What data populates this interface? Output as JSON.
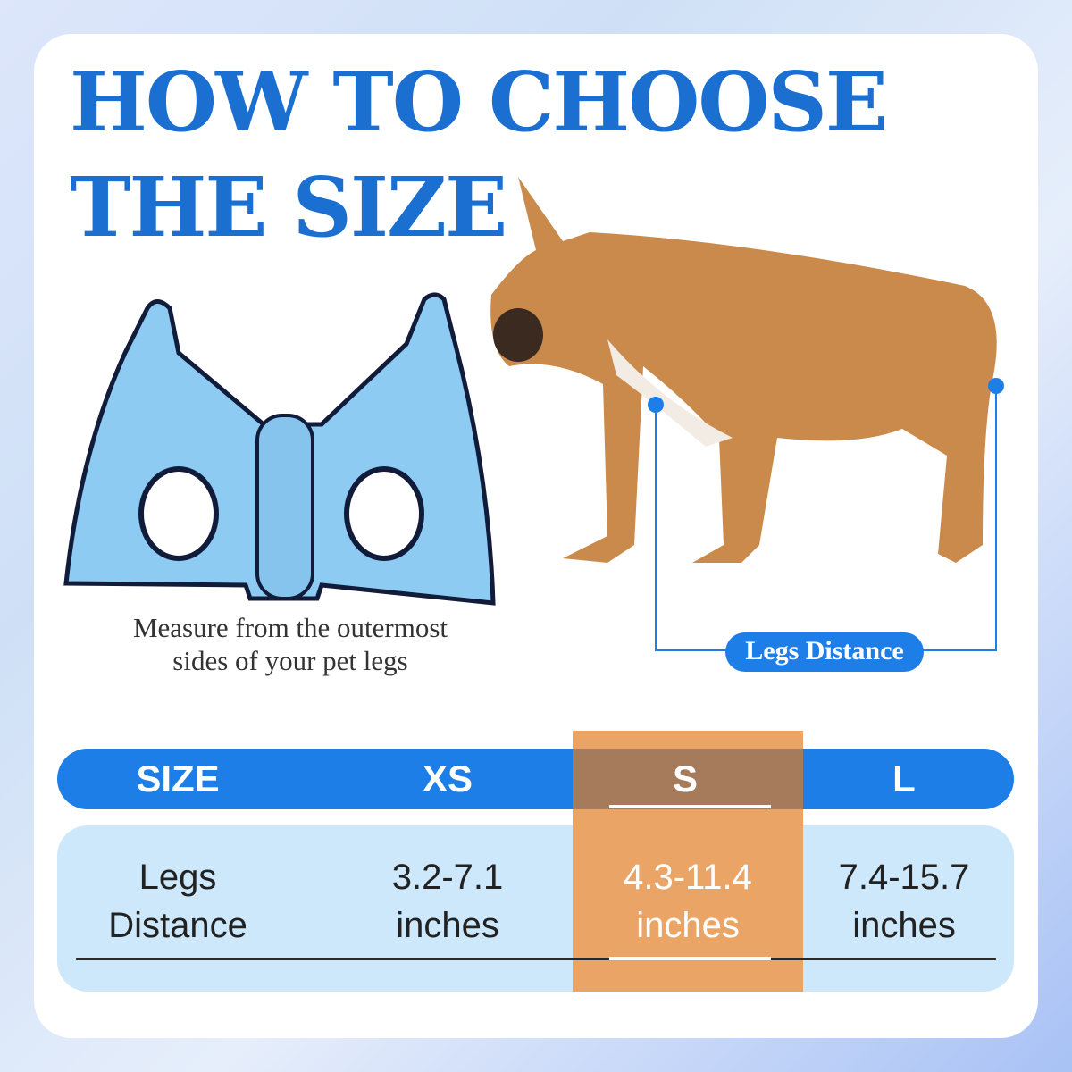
{
  "title": {
    "line1": "HOW TO CHOOSE",
    "line2": "THE SIZE"
  },
  "caption": {
    "line1": "Measure from the outermost",
    "line2": "sides of your pet legs"
  },
  "measure_label": "Legs Distance",
  "table": {
    "headers": [
      "SIZE",
      "XS",
      "S",
      "L"
    ],
    "row_label": {
      "line1": "Legs",
      "line2": "Distance"
    },
    "values": [
      {
        "range": "3.2-7.1",
        "unit": "inches"
      },
      {
        "range": "4.3-11.4",
        "unit": "inches"
      },
      {
        "range": "7.4-15.7",
        "unit": "inches"
      }
    ],
    "highlighted": "S"
  },
  "colors": {
    "accent": "#1e7ee8",
    "title": "#1a6fd0",
    "highlight": "#eaa566"
  }
}
